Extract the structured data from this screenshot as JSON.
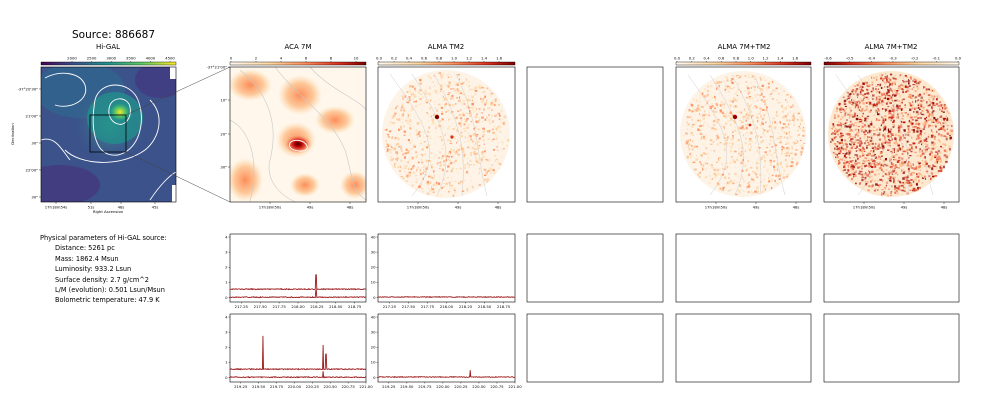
{
  "header": {
    "title": "Source: 886687"
  },
  "panels": {
    "higal": {
      "title": "Hi-GAL",
      "xlabel": "Right Ascension",
      "ylabel": "Declination",
      "colorbar_ticks": [
        "2000",
        "2500",
        "3000",
        "3500",
        "4000",
        "4500"
      ],
      "xticks": [
        "17h18m54s",
        "51s",
        "48s",
        "45s"
      ],
      "yticks": [
        "-37°20'30\"",
        "21'00\"",
        "30\"",
        "22'00\"",
        "30\""
      ]
    },
    "aca": {
      "title": "ACA 7M",
      "colorbar_ticks": [
        "0",
        "2",
        "4",
        "6",
        "8",
        "10"
      ],
      "xticks": [
        "17h18m50s",
        "49s",
        "48s"
      ],
      "yticks": [
        "-37°21'00\"",
        "10\"",
        "20\"",
        "30\""
      ]
    },
    "tm2": {
      "title": "ALMA TM2",
      "colorbar_ticks": [
        "0.0",
        "0.2",
        "0.4",
        "0.6",
        "0.8",
        "1.0",
        "1.2",
        "1.4",
        "1.6"
      ],
      "xticks": [
        "17h18m50s",
        "49s",
        "48s"
      ]
    },
    "combo": {
      "title": "ALMA 7M+TM2",
      "colorbar_ticks": [
        "0.0",
        "0.2",
        "0.4",
        "0.6",
        "0.8",
        "1.0",
        "1.2",
        "1.4",
        "1.6"
      ],
      "xticks": [
        "17h18m50s",
        "49s",
        "48s"
      ]
    },
    "combo_neg": {
      "title": "ALMA 7M+TM2",
      "colorbar_ticks": [
        "-0.6",
        "-0.5",
        "-0.4",
        "-0.3",
        "-0.2",
        "-0.1",
        "0.0"
      ],
      "xticks": [
        "17h18m50s",
        "49s",
        "48s"
      ]
    }
  },
  "physical": {
    "heading": "Physical parameters of Hi-GAL source:",
    "lines": [
      "Distance: 5261 pc",
      "Mass: 1862.4 Msun",
      "Luminosity: 933.2 Lsun",
      "Surface density: 2.7 g/cm^2",
      "L/M (evolution): 0.501 Lsun/Msun",
      "Bolometric temperature: 47.9 K"
    ]
  },
  "colors": {
    "spectrum": "#9b1b1b",
    "frame": "#000000",
    "contour": "#bbbbbb"
  },
  "chart_data": [
    {
      "type": "line",
      "panel": "aca-spectrum-1",
      "xlim": [
        217.1,
        218.9
      ],
      "ylim": [
        -0.3,
        4.2
      ],
      "x_ticks": [
        "217.25",
        "217.50",
        "217.75",
        "218.00",
        "218.25",
        "218.50",
        "218.75"
      ],
      "y_ticks": [
        "0",
        "1",
        "2",
        "3",
        "4"
      ],
      "series": [
        {
          "baseline": 0.55,
          "noise": 0.03,
          "spikes": [
            [
              218.24,
              0.95
            ]
          ]
        },
        {
          "baseline": 0.02,
          "noise": 0.03,
          "spikes": [
            [
              218.24,
              0.45
            ]
          ]
        }
      ]
    },
    {
      "type": "line",
      "panel": "tm2-spectrum-1",
      "xlim": [
        217.1,
        218.9
      ],
      "ylim": [
        -3,
        42
      ],
      "x_ticks": [
        "217.25",
        "217.50",
        "217.75",
        "218.00",
        "218.25",
        "218.50",
        "218.75"
      ],
      "y_ticks": [
        "0",
        "10",
        "20",
        "30",
        "40"
      ],
      "series": [
        {
          "baseline": 0.3,
          "noise": 0.25,
          "spikes": []
        }
      ]
    },
    {
      "type": "line",
      "panel": "aca-spectrum-2",
      "xlim": [
        219.1,
        221.0
      ],
      "ylim": [
        -0.3,
        4.2
      ],
      "x_ticks": [
        "219.25",
        "219.50",
        "219.75",
        "220.00",
        "220.25",
        "220.50",
        "220.75",
        "221.00"
      ],
      "y_ticks": [
        "0",
        "1",
        "2",
        "3",
        "4"
      ],
      "series": [
        {
          "baseline": 0.55,
          "noise": 0.03,
          "spikes": [
            [
              219.56,
              2.2
            ],
            [
              220.4,
              1.6
            ],
            [
              220.44,
              1.0
            ]
          ]
        },
        {
          "baseline": 0.02,
          "noise": 0.03,
          "spikes": [
            [
              220.4,
              0.4
            ]
          ]
        }
      ]
    },
    {
      "type": "line",
      "panel": "tm2-spectrum-2",
      "xlim": [
        219.1,
        221.0
      ],
      "ylim": [
        -3,
        42
      ],
      "x_ticks": [
        "219.25",
        "219.50",
        "219.75",
        "220.00",
        "220.25",
        "220.50",
        "220.75",
        "221.00"
      ],
      "y_ticks": [
        "0",
        "10",
        "20",
        "30",
        "40"
      ],
      "series": [
        {
          "baseline": 0.3,
          "noise": 0.25,
          "spikes": [
            [
              220.38,
              4.5
            ]
          ]
        }
      ]
    }
  ]
}
